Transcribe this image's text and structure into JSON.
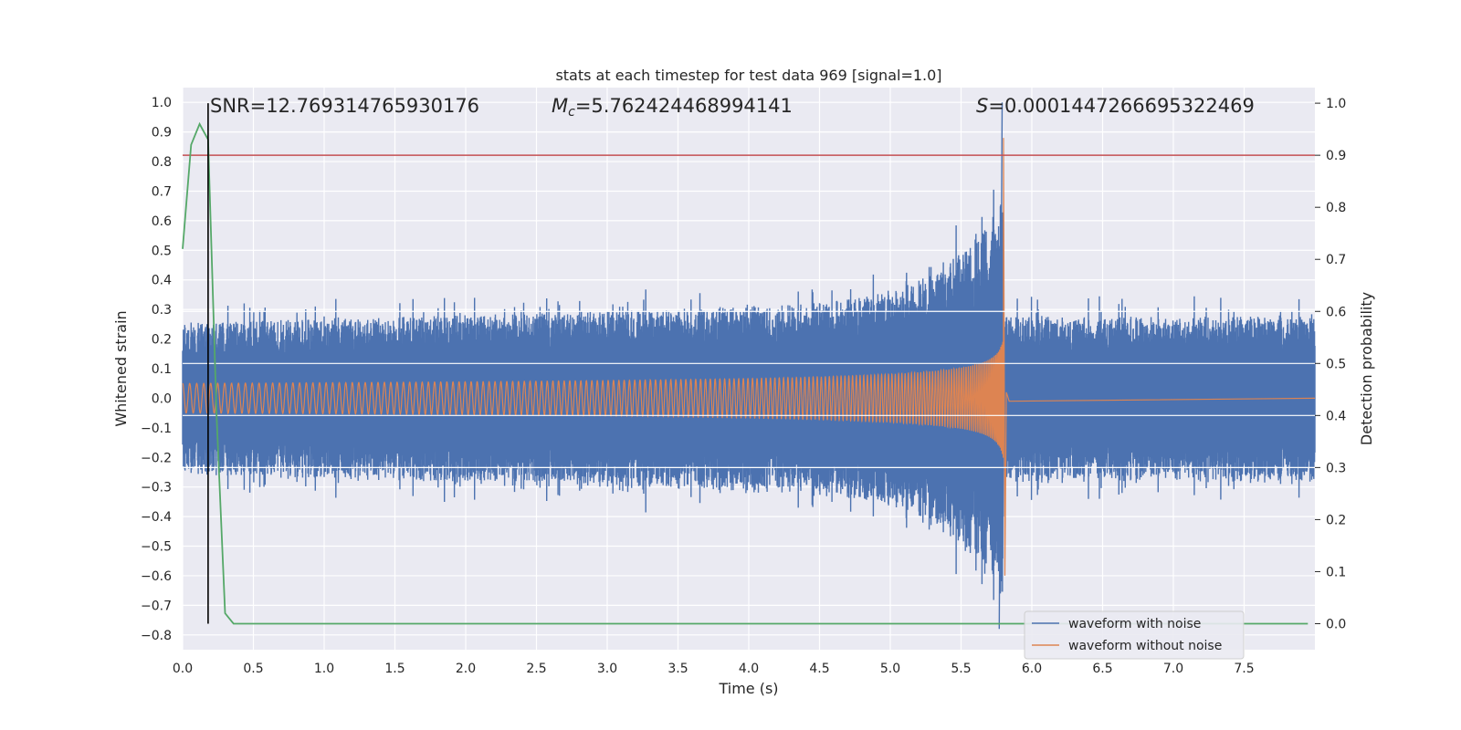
{
  "chart_data": {
    "type": "line",
    "title": "stats at each timestep for test data 969 [signal=1.0]",
    "xlabel": "Time (s)",
    "ylabel_left": "Whitened strain",
    "ylabel_right": "Detection probability",
    "xlim": [
      0,
      8
    ],
    "ylim_left": [
      -0.85,
      1.05
    ],
    "ylim_right": [
      -0.05,
      1.03
    ],
    "x_ticks": [
      "0.0",
      "0.5",
      "1.0",
      "1.5",
      "2.0",
      "2.5",
      "3.0",
      "3.5",
      "4.0",
      "4.5",
      "5.0",
      "5.5",
      "6.0",
      "6.5",
      "7.0",
      "7.5"
    ],
    "y_left_ticks": [
      "1.0",
      "0.9",
      "0.8",
      "0.7",
      "0.6",
      "0.5",
      "0.4",
      "0.3",
      "0.2",
      "0.1",
      "0.0",
      "−0.1",
      "−0.2",
      "−0.3",
      "−0.4",
      "−0.5",
      "−0.6",
      "−0.7",
      "−0.8"
    ],
    "y_right_ticks": [
      "1.0",
      "0.9",
      "0.8",
      "0.7",
      "0.6",
      "0.5",
      "0.4",
      "0.3",
      "0.2",
      "0.1",
      "0.0"
    ],
    "annotations": {
      "snr": "SNR=12.769314765930176",
      "mc_symbol": "M",
      "mc_sub": "c",
      "mc_value": "=5.762424468994141",
      "s_symbol": "S",
      "s_value": "=0.0001447266695322469"
    },
    "threshold_probability": 0.9,
    "marker_time": 0.18,
    "merger_time": 5.8,
    "series": [
      {
        "name": "waveform with noise",
        "color": "#4c72b0",
        "noise_amplitude": 0.3,
        "peak_strain": 1.0,
        "min_strain": -0.78
      },
      {
        "name": "waveform without noise",
        "color": "#dd8452",
        "start_amplitude": 0.05,
        "peak_strain": 0.88,
        "min_strain": -0.6
      },
      {
        "name": "detection probability",
        "color": "#55a868",
        "x": [
          0.0,
          0.06,
          0.12,
          0.18,
          0.24,
          0.3,
          0.36,
          0.5,
          1.0,
          2.0,
          3.0,
          4.0,
          5.0,
          6.0,
          7.0,
          7.95
        ],
        "y": [
          0.72,
          0.92,
          0.96,
          0.93,
          0.4,
          0.02,
          0.0,
          0.0,
          0.0,
          0.0,
          0.0,
          0.0,
          0.0,
          0.0,
          0.0,
          0.0
        ]
      }
    ],
    "threshold_color": "#c44e52",
    "marker_color": "#000000",
    "grid": true,
    "legend_position": "bottom-right"
  }
}
